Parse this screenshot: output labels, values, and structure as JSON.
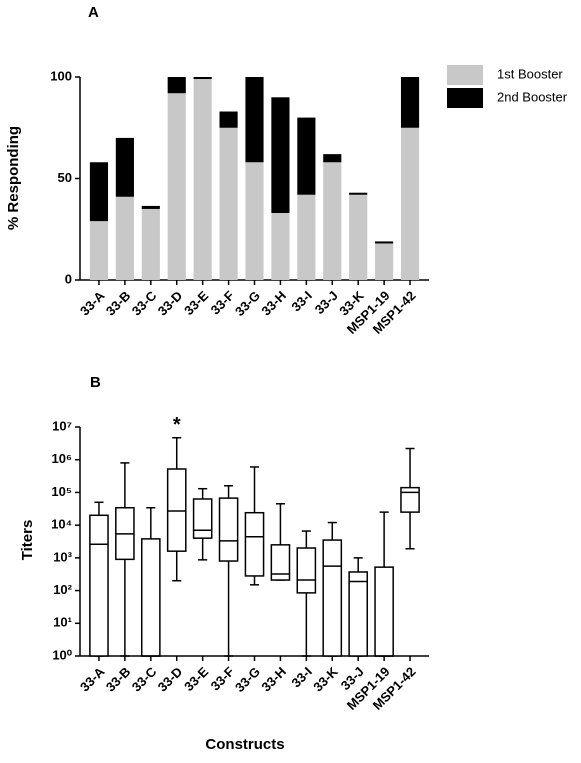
{
  "chart_data": [
    {
      "type": "stacked_bar",
      "title": "A",
      "ylabel": "% Responding",
      "categories": [
        "33-A",
        "33-B",
        "33-C",
        "33-D",
        "33-E",
        "33-F",
        "33-G",
        "33-H",
        "33-I",
        "33-J",
        "33-K",
        "MSP1-19",
        "MSP1-42"
      ],
      "series": [
        {
          "name": "1st Booster",
          "color": "#c8c8c8",
          "values": [
            29,
            41,
            35,
            92,
            99,
            75,
            58,
            33,
            42,
            58,
            42,
            18,
            75
          ]
        },
        {
          "name": "2nd Booster",
          "color": "#000000",
          "values": [
            29,
            29,
            1.5,
            8,
            1,
            8,
            42,
            57,
            38,
            4,
            1,
            1,
            25
          ]
        }
      ],
      "ylim": [
        0,
        100
      ],
      "yticks": [
        0,
        50,
        100
      ],
      "legend": "right"
    },
    {
      "type": "box",
      "title": "B",
      "xlabel": "Constructs",
      "ylabel": "Titers",
      "log_y": true,
      "color": "#ffffff",
      "categories": [
        "33-A",
        "33-B",
        "33-C",
        "33-D",
        "33-E",
        "33-F",
        "33-G",
        "33-H",
        "33-I",
        "33-K",
        "33-J",
        "MSP1-19",
        "MSP1-42"
      ],
      "min": [
        1,
        1,
        1,
        200,
        870,
        1,
        150,
        210,
        1,
        1,
        1,
        1,
        1900
      ],
      "q1": [
        1,
        900,
        1,
        1600,
        4000,
        800,
        280,
        210,
        85,
        1,
        1,
        1,
        25000
      ],
      "median": [
        2600,
        5400,
        1,
        27000,
        7000,
        3300,
        4400,
        320,
        210,
        560,
        190,
        1,
        100000
      ],
      "q3": [
        20000,
        34000,
        3800,
        520000,
        63000,
        67000,
        24000,
        2500,
        2000,
        3500,
        370,
        520,
        140000
      ],
      "max": [
        50000,
        800000,
        34000,
        4700000,
        130000,
        160000,
        600000,
        45000,
        6600,
        12000,
        1000,
        25000,
        2200000
      ],
      "ylim": [
        1,
        10000000
      ],
      "yticks": [
        {
          "value": 1,
          "label": "10⁰"
        },
        {
          "value": 10,
          "label": "10¹"
        },
        {
          "value": 100,
          "label": "10²"
        },
        {
          "value": 1000,
          "label": "10³"
        },
        {
          "value": 10000,
          "label": "10⁴"
        },
        {
          "value": 100000,
          "label": "10⁵"
        },
        {
          "value": 1000000,
          "label": "10⁶"
        },
        {
          "value": 10000000,
          "label": "10⁷"
        }
      ],
      "annotations": [
        {
          "text": "*",
          "category": 3
        }
      ]
    }
  ]
}
